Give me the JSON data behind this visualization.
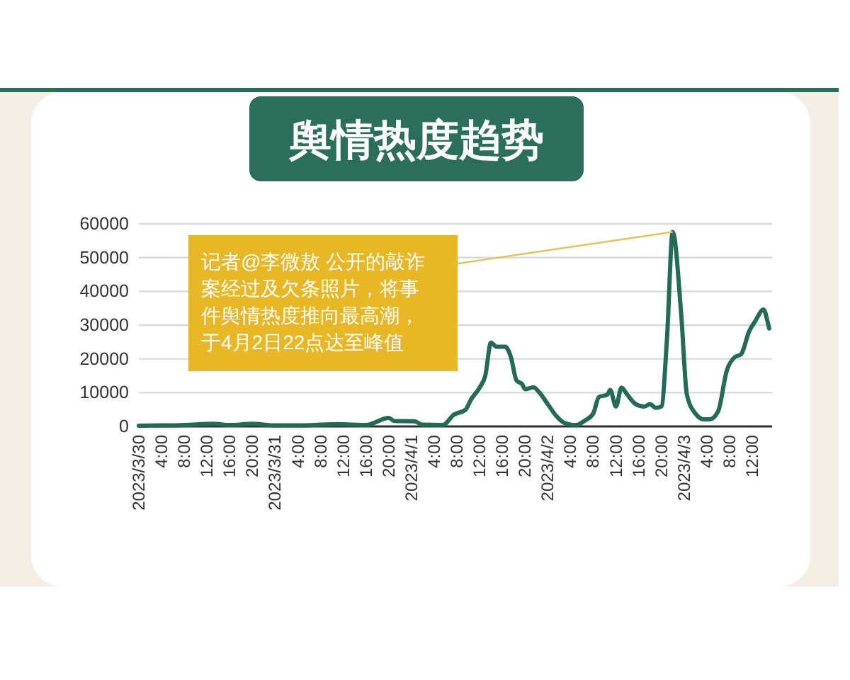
{
  "chart_data": {
    "type": "line",
    "title": "舆情热度趋势",
    "annotations": [
      {
        "text": "记者@李微敖 公开的敲诈案经过及欠条照片，将事件舆情热度推向最高潮，于4月2日22点达至峰值",
        "x": "2023-04-02T22:00",
        "y": 57600
      }
    ],
    "x": [
      "2023-03-30T00:00",
      "2023-03-30T04:00",
      "2023-03-30T08:00",
      "2023-03-30T13:00",
      "2023-03-30T16:00",
      "2023-03-30T20:00",
      "2023-03-31T00:00",
      "2023-03-31T04:00",
      "2023-03-31T08:00",
      "2023-03-31T11:00",
      "2023-03-31T16:00",
      "2023-03-31T20:00",
      "2023-03-31T21:00",
      "2023-04-01T00:30",
      "2023-04-01T02:00",
      "2023-04-01T05:30",
      "2023-04-01T07:30",
      "2023-04-01T09:30",
      "2023-04-01T10:30",
      "2023-04-01T12:00",
      "2023-04-01T13:00",
      "2023-04-01T14:00",
      "2023-04-01T15:00",
      "2023-04-01T16:30",
      "2023-04-01T17:30",
      "2023-04-01T18:30",
      "2023-04-01T19:30",
      "2023-04-01T20:00",
      "2023-04-01T21:30",
      "2023-04-01T22:30",
      "2023-04-02T00:00",
      "2023-04-02T01:30",
      "2023-04-02T03:00",
      "2023-04-02T05:00",
      "2023-04-02T06:30",
      "2023-04-02T08:00",
      "2023-04-02T09:00",
      "2023-04-02T10:30",
      "2023-04-02T11:00",
      "2023-04-02T12:00",
      "2023-04-02T13:00",
      "2023-04-02T14:00",
      "2023-04-02T15:30",
      "2023-04-02T17:00",
      "2023-04-02T18:00",
      "2023-04-02T19:00",
      "2023-04-02T20:00",
      "2023-04-02T21:00",
      "2023-04-02T22:00",
      "2023-04-02T23:30",
      "2023-04-03T00:30",
      "2023-04-03T02:00",
      "2023-04-03T03:30",
      "2023-04-03T04:30",
      "2023-04-03T06:00",
      "2023-04-03T07:30",
      "2023-04-03T09:00",
      "2023-04-03T10:00",
      "2023-04-03T11:30",
      "2023-04-03T12:30",
      "2023-04-03T14:00",
      "2023-04-03T15:00"
    ],
    "values": [
      200,
      300,
      400,
      800,
      400,
      800,
      300,
      300,
      500,
      700,
      400,
      2500,
      1600,
      1500,
      500,
      400,
      3500,
      4900,
      8000,
      11500,
      15000,
      24800,
      23600,
      23600,
      20600,
      13600,
      12500,
      11000,
      11600,
      10100,
      6600,
      3100,
      1000,
      400,
      1700,
      3800,
      8700,
      9400,
      10800,
      5900,
      11500,
      9400,
      6600,
      5900,
      6600,
      5500,
      5900,
      26200,
      57600,
      33200,
      9400,
      3800,
      2100,
      2100,
      4500,
      16400,
      20600,
      21300,
      28300,
      31100,
      34600,
      29000
    ],
    "color": "#236b57",
    "xlim": [
      "2023-03-30T00:00",
      "2023-04-03T15:30"
    ],
    "ylim": [
      0,
      60000
    ],
    "yticks": [
      0,
      10000,
      20000,
      30000,
      40000,
      50000,
      60000
    ],
    "xticks": [
      {
        "value": "2023-03-30T00:00",
        "label": "2023/3/30"
      },
      {
        "value": "2023-03-30T04:00",
        "label": "4:00"
      },
      {
        "value": "2023-03-30T08:00",
        "label": "8:00"
      },
      {
        "value": "2023-03-30T12:00",
        "label": "12:00"
      },
      {
        "value": "2023-03-30T16:00",
        "label": "16:00"
      },
      {
        "value": "2023-03-30T20:00",
        "label": "20:00"
      },
      {
        "value": "2023-03-31T00:00",
        "label": "2023/3/31"
      },
      {
        "value": "2023-03-31T04:00",
        "label": "4:00"
      },
      {
        "value": "2023-03-31T08:00",
        "label": "8:00"
      },
      {
        "value": "2023-03-31T12:00",
        "label": "12:00"
      },
      {
        "value": "2023-03-31T16:00",
        "label": "16:00"
      },
      {
        "value": "2023-03-31T20:00",
        "label": "20:00"
      },
      {
        "value": "2023-04-01T00:00",
        "label": "2023/4/1"
      },
      {
        "value": "2023-04-01T04:00",
        "label": "4:00"
      },
      {
        "value": "2023-04-01T08:00",
        "label": "8:00"
      },
      {
        "value": "2023-04-01T12:00",
        "label": "12:00"
      },
      {
        "value": "2023-04-01T16:00",
        "label": "16:00"
      },
      {
        "value": "2023-04-01T20:00",
        "label": "20:00"
      },
      {
        "value": "2023-04-02T00:00",
        "label": "2023/4/2"
      },
      {
        "value": "2023-04-02T04:00",
        "label": "4:00"
      },
      {
        "value": "2023-04-02T08:00",
        "label": "8:00"
      },
      {
        "value": "2023-04-02T12:00",
        "label": "12:00"
      },
      {
        "value": "2023-04-02T16:00",
        "label": "16:00"
      },
      {
        "value": "2023-04-02T20:00",
        "label": "20:00"
      },
      {
        "value": "2023-04-03T00:00",
        "label": "2023/4/3"
      },
      {
        "value": "2023-04-03T04:00",
        "label": "4:00"
      },
      {
        "value": "2023-04-03T08:00",
        "label": "8:00"
      },
      {
        "value": "2023-04-03T12:00",
        "label": "12:00"
      }
    ],
    "grid": "y"
  }
}
